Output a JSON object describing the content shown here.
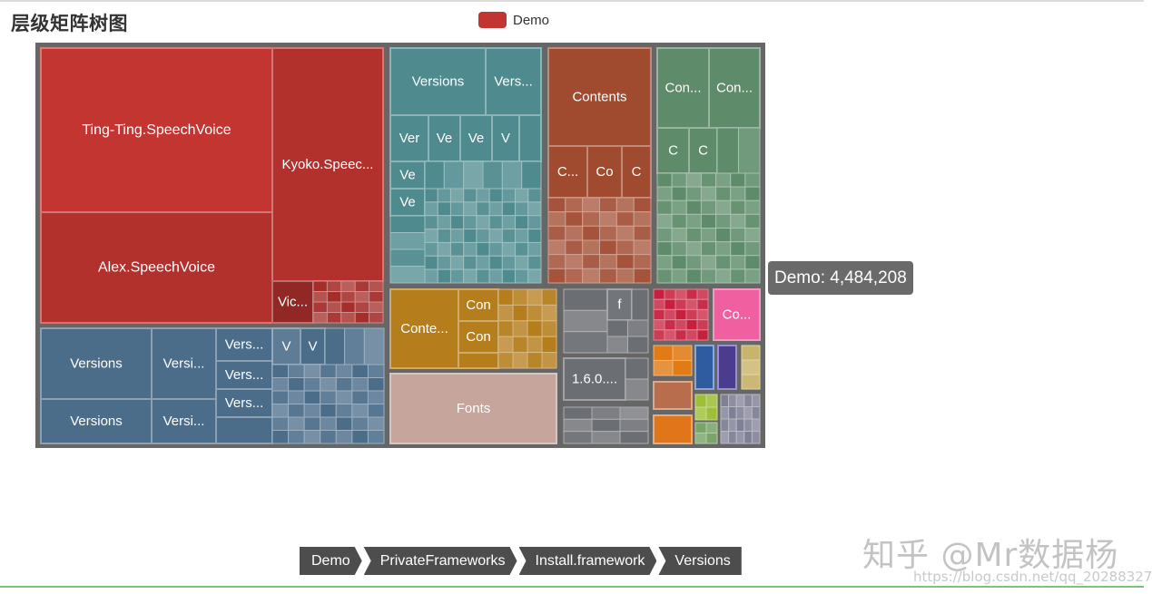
{
  "title": "层级矩阵树图",
  "legend": {
    "label": "Demo",
    "color": "#c23531"
  },
  "tooltip": {
    "name": "Demo",
    "value": "4,484,208"
  },
  "breadcrumb": [
    "Demo",
    "PrivateFrameworks",
    "Install.framework",
    "Versions"
  ],
  "watermark": {
    "text": "知乎 @Mr数据杨",
    "url": "https://blog.csdn.net/qq_20288327"
  },
  "colors": {
    "red": "#c23531",
    "teal": "#4e8a8e",
    "sienna": "#a04a30",
    "green": "#5e8c6a",
    "blue": "#4c6d8a",
    "ochre": "#b57d1c",
    "rose": "#c5a59c",
    "gray": "#6b6e73",
    "crimson": "#c6203e",
    "pink": "#f060a0"
  },
  "chart_data": {
    "type": "treemap",
    "root": "Demo",
    "total": 4484208,
    "nodes": [
      {
        "name": "Ting-Ting.SpeechVoice",
        "group": "red"
      },
      {
        "name": "Kyoko.Speec...",
        "group": "red"
      },
      {
        "name": "Alex.SpeechVoice",
        "group": "red"
      },
      {
        "name": "Vic...",
        "group": "red"
      },
      {
        "name": "Versions",
        "group": "teal"
      },
      {
        "name": "Vers...",
        "group": "teal"
      },
      {
        "name": "Ver",
        "group": "teal"
      },
      {
        "name": "Ve",
        "group": "teal"
      },
      {
        "name": "Ve",
        "group": "teal"
      },
      {
        "name": "V",
        "group": "teal"
      },
      {
        "name": "Ve",
        "group": "teal"
      },
      {
        "name": "Ve",
        "group": "teal"
      },
      {
        "name": "Contents",
        "group": "sienna"
      },
      {
        "name": "C...",
        "group": "sienna"
      },
      {
        "name": "Co",
        "group": "sienna"
      },
      {
        "name": "C",
        "group": "sienna"
      },
      {
        "name": "Con...",
        "group": "green"
      },
      {
        "name": "Con...",
        "group": "green"
      },
      {
        "name": "C",
        "group": "green"
      },
      {
        "name": "C",
        "group": "green"
      },
      {
        "name": "Versions",
        "group": "blue"
      },
      {
        "name": "Versi...",
        "group": "blue"
      },
      {
        "name": "Vers...",
        "group": "blue"
      },
      {
        "name": "Vers...",
        "group": "blue"
      },
      {
        "name": "Vers...",
        "group": "blue"
      },
      {
        "name": "V",
        "group": "blue"
      },
      {
        "name": "V",
        "group": "blue"
      },
      {
        "name": "Versions",
        "group": "blue"
      },
      {
        "name": "Versi...",
        "group": "blue"
      },
      {
        "name": "Conte...",
        "group": "ochre"
      },
      {
        "name": "Con",
        "group": "ochre"
      },
      {
        "name": "Con",
        "group": "ochre"
      },
      {
        "name": "Fonts",
        "group": "rose"
      },
      {
        "name": "f",
        "group": "gray"
      },
      {
        "name": "1.6.0....",
        "group": "gray"
      },
      {
        "name": "Co...",
        "group": "pink"
      }
    ]
  }
}
